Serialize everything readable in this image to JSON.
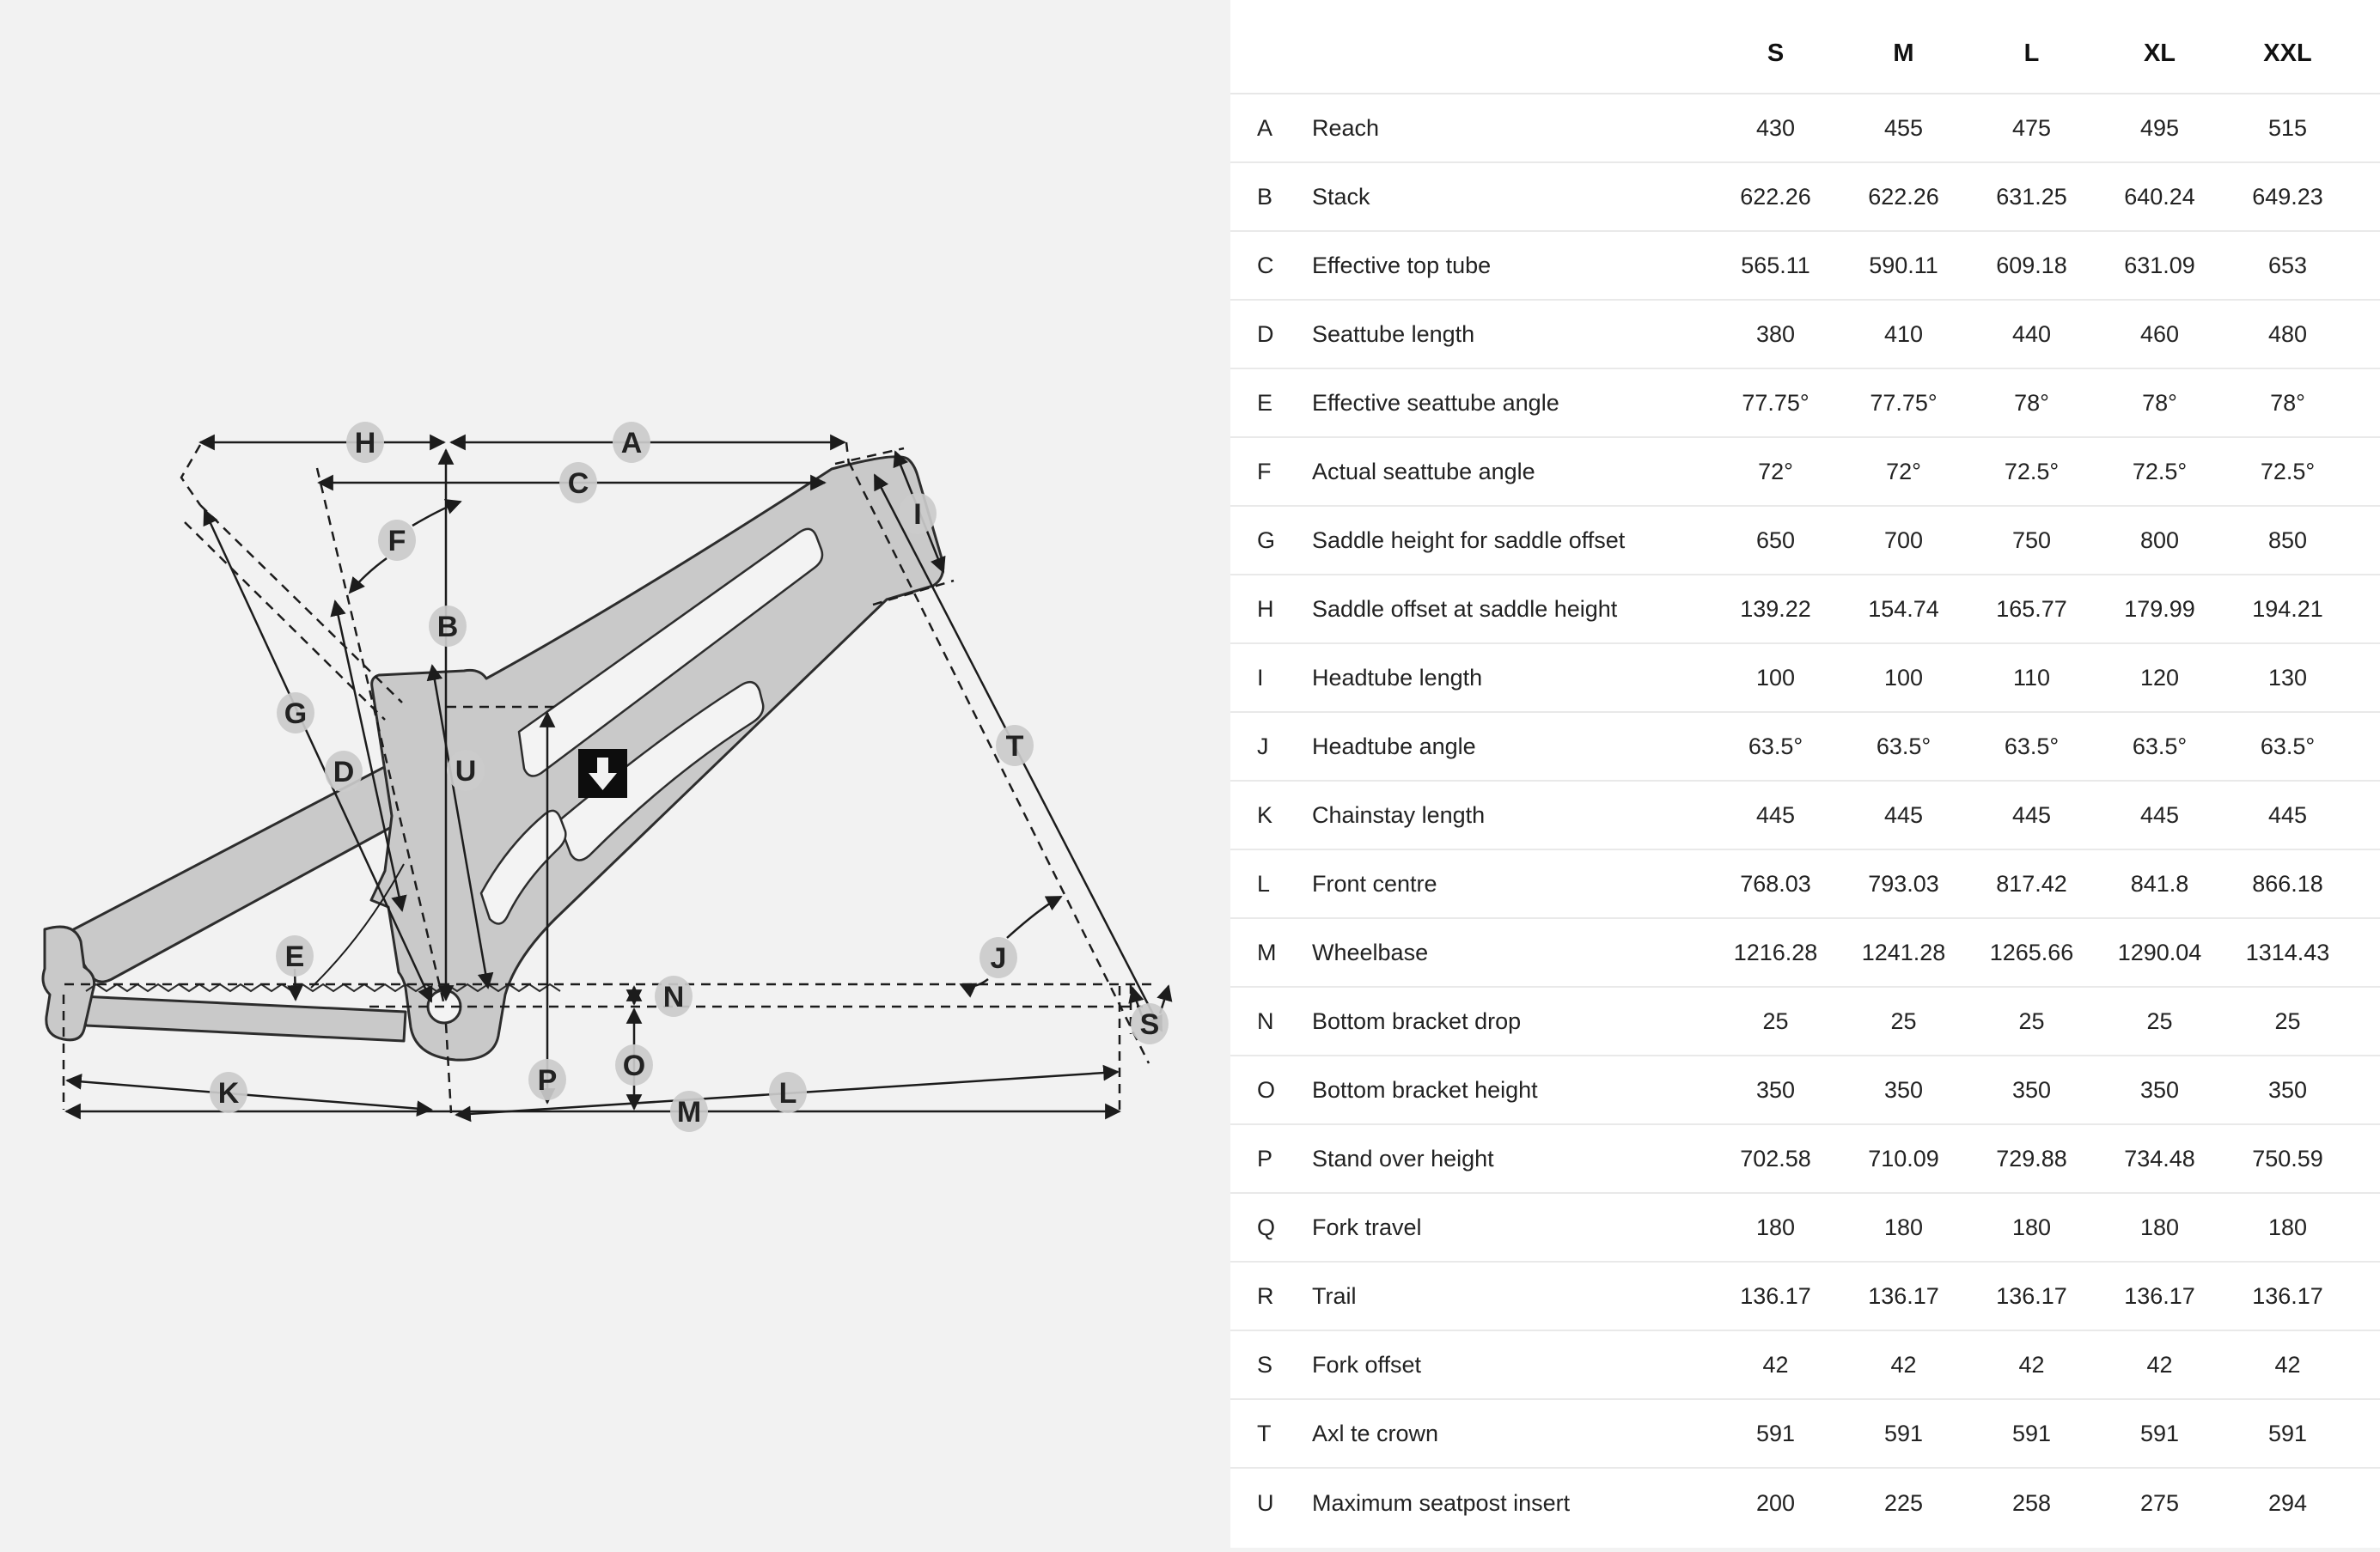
{
  "table": {
    "sizes": [
      "S",
      "M",
      "L",
      "XL",
      "XXL"
    ],
    "rows": [
      {
        "letter": "A",
        "label": "Reach",
        "values": [
          "430",
          "455",
          "475",
          "495",
          "515"
        ]
      },
      {
        "letter": "B",
        "label": "Stack",
        "values": [
          "622.26",
          "622.26",
          "631.25",
          "640.24",
          "649.23"
        ]
      },
      {
        "letter": "C",
        "label": "Effective top tube",
        "values": [
          "565.11",
          "590.11",
          "609.18",
          "631.09",
          "653"
        ]
      },
      {
        "letter": "D",
        "label": "Seattube length",
        "values": [
          "380",
          "410",
          "440",
          "460",
          "480"
        ]
      },
      {
        "letter": "E",
        "label": "Effective seattube angle",
        "values": [
          "77.75°",
          "77.75°",
          "78°",
          "78°",
          "78°"
        ]
      },
      {
        "letter": "F",
        "label": "Actual seattube angle",
        "values": [
          "72°",
          "72°",
          "72.5°",
          "72.5°",
          "72.5°"
        ]
      },
      {
        "letter": "G",
        "label": "Saddle height for saddle offset",
        "values": [
          "650",
          "700",
          "750",
          "800",
          "850"
        ]
      },
      {
        "letter": "H",
        "label": "Saddle offset at saddle height",
        "values": [
          "139.22",
          "154.74",
          "165.77",
          "179.99",
          "194.21"
        ]
      },
      {
        "letter": "I",
        "label": "Headtube length",
        "values": [
          "100",
          "100",
          "110",
          "120",
          "130"
        ]
      },
      {
        "letter": "J",
        "label": "Headtube angle",
        "values": [
          "63.5°",
          "63.5°",
          "63.5°",
          "63.5°",
          "63.5°"
        ]
      },
      {
        "letter": "K",
        "label": "Chainstay length",
        "values": [
          "445",
          "445",
          "445",
          "445",
          "445"
        ]
      },
      {
        "letter": "L",
        "label": "Front centre",
        "values": [
          "768.03",
          "793.03",
          "817.42",
          "841.8",
          "866.18"
        ]
      },
      {
        "letter": "M",
        "label": "Wheelbase",
        "values": [
          "1216.28",
          "1241.28",
          "1265.66",
          "1290.04",
          "1314.43"
        ]
      },
      {
        "letter": "N",
        "label": "Bottom bracket drop",
        "values": [
          "25",
          "25",
          "25",
          "25",
          "25"
        ]
      },
      {
        "letter": "O",
        "label": "Bottom bracket height",
        "values": [
          "350",
          "350",
          "350",
          "350",
          "350"
        ]
      },
      {
        "letter": "P",
        "label": "Stand over height",
        "values": [
          "702.58",
          "710.09",
          "729.88",
          "734.48",
          "750.59"
        ]
      },
      {
        "letter": "Q",
        "label": "Fork travel",
        "values": [
          "180",
          "180",
          "180",
          "180",
          "180"
        ]
      },
      {
        "letter": "R",
        "label": "Trail",
        "values": [
          "136.17",
          "136.17",
          "136.17",
          "136.17",
          "136.17"
        ]
      },
      {
        "letter": "S",
        "label": "Fork offset",
        "values": [
          "42",
          "42",
          "42",
          "42",
          "42"
        ]
      },
      {
        "letter": "T",
        "label": "Axl te crown",
        "values": [
          "591",
          "591",
          "591",
          "591",
          "591"
        ]
      },
      {
        "letter": "U",
        "label": "Maximum seatpost insert",
        "values": [
          "200",
          "225",
          "258",
          "275",
          "294"
        ]
      }
    ]
  },
  "diagram": {
    "badges": [
      "A",
      "B",
      "C",
      "D",
      "E",
      "F",
      "G",
      "H",
      "I",
      "J",
      "K",
      "L",
      "M",
      "N",
      "O",
      "P",
      "S",
      "T",
      "U"
    ],
    "icons": {
      "down_arrow": "down-arrow-icon"
    },
    "colors": {
      "frame_fill": "#c9c9c9",
      "frame_stroke": "#2d2d2d",
      "line": "#1c1c1c",
      "badge_fill": "#cbcbcb",
      "background": "#f2f2f2",
      "panel": "#ffffff"
    }
  }
}
